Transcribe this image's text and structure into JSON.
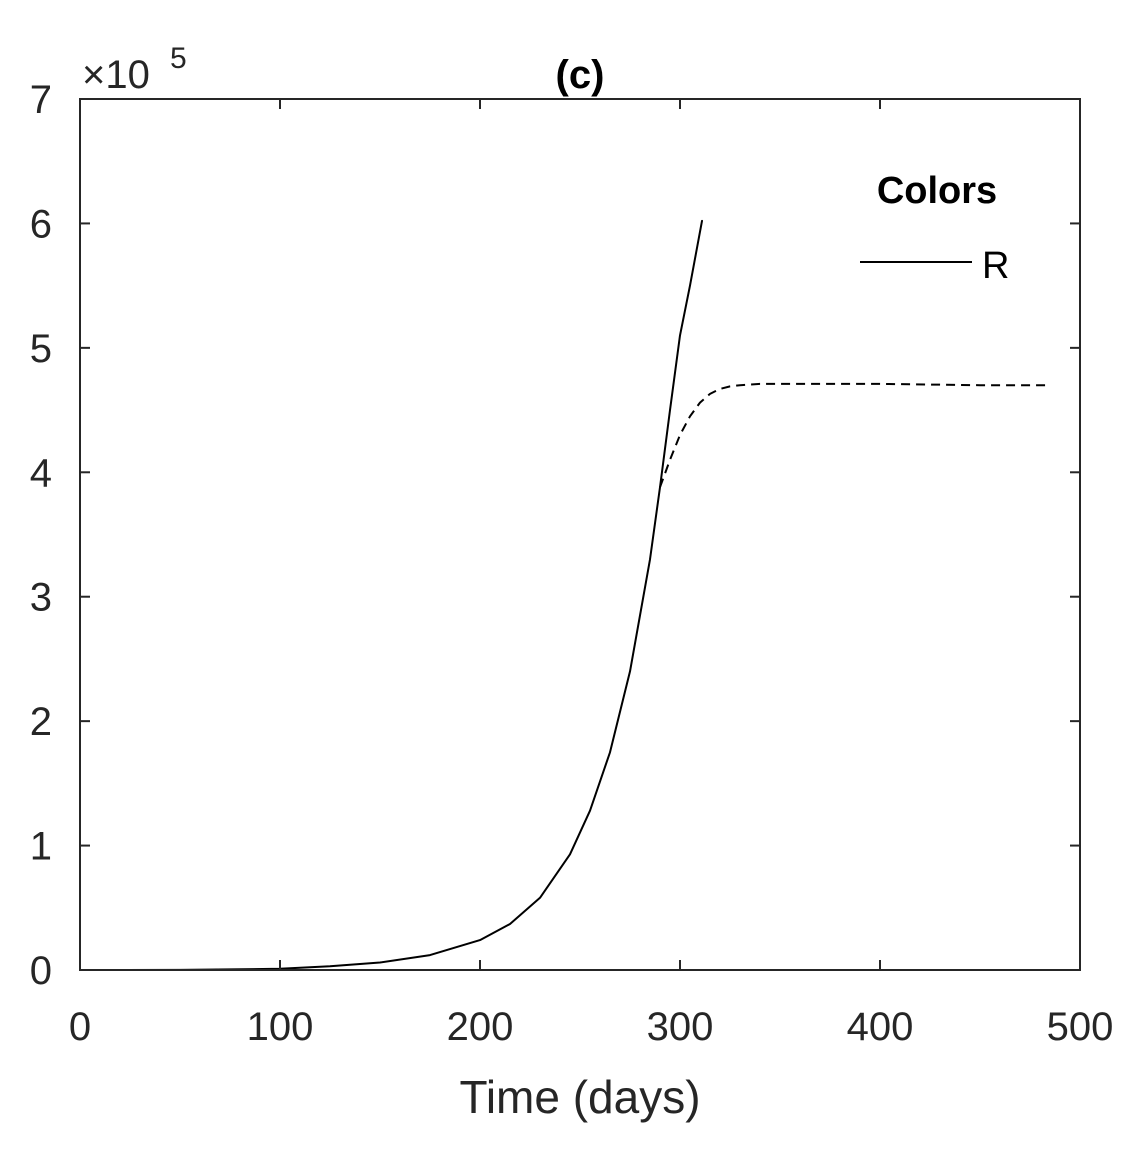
{
  "chart_data": {
    "type": "line",
    "title": "(c)",
    "xlabel": "Time (days)",
    "ylabel": "",
    "y_multiplier": {
      "base": "×10",
      "exponent": "5"
    },
    "xlim": [
      0,
      500
    ],
    "ylim": [
      0,
      7
    ],
    "x_ticks": [
      0,
      100,
      200,
      300,
      400,
      500
    ],
    "y_ticks": [
      0,
      1,
      2,
      3,
      4,
      5,
      6,
      7
    ],
    "grid": false,
    "legend": {
      "title": "Colors",
      "placement": "top-right",
      "entries": [
        "R"
      ]
    },
    "series": [
      {
        "name": "R",
        "style": "solid",
        "color": "#000000",
        "x": [
          0,
          50,
          100,
          125,
          150,
          175,
          200,
          215,
          230,
          245,
          255,
          265,
          275,
          285,
          290,
          295,
          300,
          305,
          311
        ],
        "y": [
          0.0,
          0.001,
          0.01,
          0.03,
          0.06,
          0.12,
          0.24,
          0.37,
          0.58,
          0.93,
          1.28,
          1.75,
          2.4,
          3.3,
          3.88,
          4.5,
          5.1,
          5.5,
          6.02
        ]
      },
      {
        "style": "dashed",
        "color": "#000000",
        "x": [
          290,
          295,
          300,
          305,
          310,
          315,
          320,
          325,
          330,
          340,
          360,
          400,
          450,
          485
        ],
        "y": [
          3.88,
          4.1,
          4.3,
          4.45,
          4.56,
          4.63,
          4.67,
          4.69,
          4.7,
          4.71,
          4.71,
          4.71,
          4.7,
          4.7
        ]
      }
    ]
  }
}
